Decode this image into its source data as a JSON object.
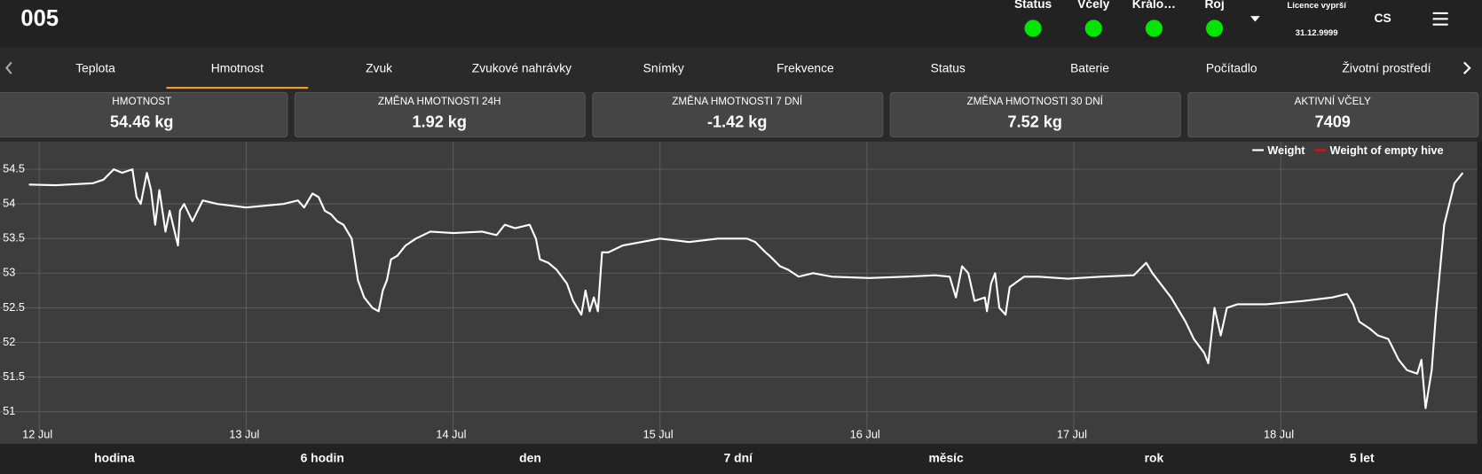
{
  "header": {
    "title": "005",
    "indicators": [
      {
        "label": "Status",
        "color": "#00e600"
      },
      {
        "label": "Včely",
        "color": "#00e600"
      },
      {
        "label": "Králo…",
        "color": "#00e600"
      },
      {
        "label": "Roj",
        "color": "#00e600"
      }
    ],
    "licence_label": "Licence vyprší",
    "licence_date": "31.12.9999",
    "language": "CS"
  },
  "tabs": {
    "items": [
      "Teplota",
      "Hmotnost",
      "Zvuk",
      "Zvukové nahrávky",
      "Snímky",
      "Frekvence",
      "Status",
      "Baterie",
      "Počítadlo",
      "Životní prostředí"
    ],
    "active": 1
  },
  "cards": [
    {
      "label": "HMOTNOST",
      "value": "54.46 kg"
    },
    {
      "label": "ZMĚNA HMOTNOSTI 24H",
      "value": "1.92 kg"
    },
    {
      "label": "ZMĚNA HMOTNOSTI 7 DNÍ",
      "value": "-1.42 kg"
    },
    {
      "label": "ZMĚNA HMOTNOSTI 30 DNÍ",
      "value": "7.52 kg"
    },
    {
      "label": "AKTIVNÍ VČELY",
      "value": "7409",
      "color": "#d9a0e8"
    }
  ],
  "chart_data": {
    "type": "line",
    "x": [
      11.95,
      12.08,
      12.26,
      12.31,
      12.36,
      12.4,
      12.45,
      12.47,
      12.49,
      12.52,
      12.54,
      12.56,
      12.58,
      12.61,
      12.63,
      12.67,
      12.68,
      12.7,
      12.74,
      12.79,
      12.86,
      13.0,
      13.18,
      13.25,
      13.28,
      13.32,
      13.35,
      13.38,
      13.41,
      13.44,
      13.47,
      13.51,
      13.54,
      13.57,
      13.61,
      13.64,
      13.66,
      13.68,
      13.7,
      13.73,
      13.77,
      13.82,
      13.89,
      14.0,
      14.14,
      14.21,
      14.25,
      14.3,
      14.37,
      14.4,
      14.42,
      14.46,
      14.5,
      14.55,
      14.58,
      14.6,
      14.62,
      14.64,
      14.66,
      14.68,
      14.7,
      14.72,
      14.75,
      14.82,
      14.91,
      15.0,
      15.14,
      15.28,
      15.42,
      15.46,
      15.51,
      15.53,
      15.58,
      15.62,
      15.67,
      15.74,
      15.83,
      16.01,
      16.19,
      16.33,
      16.4,
      16.43,
      16.46,
      16.49,
      16.52,
      16.57,
      16.58,
      16.6,
      16.62,
      16.64,
      16.67,
      16.69,
      16.76,
      16.83,
      16.97,
      17.13,
      17.29,
      17.35,
      17.38,
      17.47,
      17.54,
      17.58,
      17.63,
      17.65,
      17.68,
      17.71,
      17.74,
      17.79,
      17.93,
      18.11,
      18.25,
      18.32,
      18.35,
      18.38,
      18.43,
      18.47,
      18.52,
      18.57,
      18.61,
      18.66,
      18.68,
      18.7,
      18.73,
      18.75,
      18.79,
      18.84,
      18.88
    ],
    "series": [
      {
        "name": "Weight",
        "color": "#ffffff",
        "values": [
          54.28,
          54.27,
          54.3,
          54.35,
          54.5,
          54.45,
          54.5,
          54.1,
          54.0,
          54.45,
          54.2,
          53.7,
          54.2,
          53.6,
          53.9,
          53.4,
          53.9,
          54.0,
          53.75,
          54.05,
          54.0,
          53.95,
          54.0,
          54.05,
          53.95,
          54.15,
          54.1,
          53.9,
          53.85,
          53.75,
          53.7,
          53.5,
          52.9,
          52.65,
          52.5,
          52.45,
          52.75,
          52.9,
          53.2,
          53.25,
          53.4,
          53.5,
          53.6,
          53.58,
          53.6,
          53.55,
          53.7,
          53.65,
          53.7,
          53.5,
          53.2,
          53.15,
          53.05,
          52.85,
          52.6,
          52.5,
          52.4,
          52.75,
          52.45,
          52.65,
          52.45,
          53.3,
          53.3,
          53.4,
          53.45,
          53.5,
          53.45,
          53.5,
          53.5,
          53.45,
          53.3,
          53.25,
          53.1,
          53.05,
          52.95,
          53.0,
          52.95,
          52.93,
          52.95,
          52.97,
          52.95,
          52.65,
          53.1,
          53.0,
          52.6,
          52.65,
          52.45,
          52.85,
          53.0,
          52.5,
          52.4,
          52.8,
          52.95,
          52.95,
          52.92,
          52.95,
          52.97,
          53.15,
          53.0,
          52.65,
          52.3,
          52.05,
          51.85,
          51.7,
          52.5,
          52.1,
          52.5,
          52.55,
          52.55,
          52.6,
          52.65,
          52.7,
          52.55,
          52.3,
          52.2,
          52.1,
          52.05,
          51.75,
          51.6,
          51.55,
          51.75,
          51.05,
          51.6,
          52.4,
          53.7,
          54.3,
          54.45
        ]
      },
      {
        "name": "Weight of empty hive",
        "color": "#ff0000"
      }
    ],
    "xlim": [
      11.81,
      18.95
    ],
    "xticks": [
      {
        "value": 12,
        "label": "12 Jul"
      },
      {
        "value": 13,
        "label": "13 Jul"
      },
      {
        "value": 14,
        "label": "14 Jul"
      },
      {
        "value": 15,
        "label": "15 Jul"
      },
      {
        "value": 16,
        "label": "16 Jul"
      },
      {
        "value": 17,
        "label": "17 Jul"
      },
      {
        "value": 18,
        "label": "18 Jul"
      }
    ],
    "ylim": [
      50.85,
      54.9
    ],
    "yticks": [
      51,
      51.5,
      52,
      52.5,
      53,
      53.5,
      54,
      54.5
    ],
    "grid": true,
    "legend": "top-right"
  },
  "ranges": [
    "hodina",
    "6 hodin",
    "den",
    "7 dní",
    "měsíc",
    "rok",
    "5 let"
  ]
}
